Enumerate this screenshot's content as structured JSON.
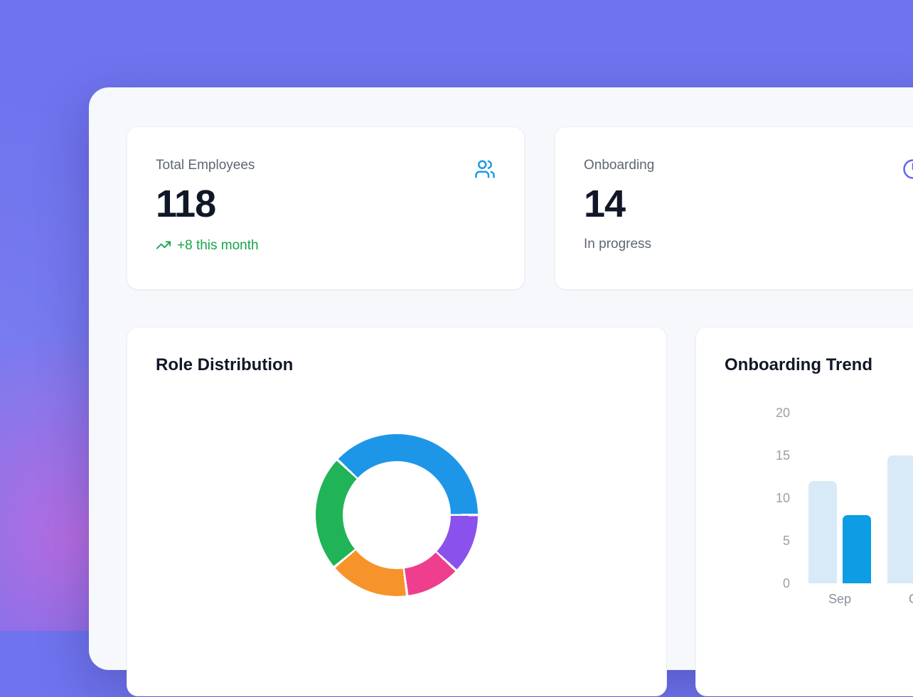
{
  "colors": {
    "background": "#6f73ee",
    "panel": "#f6f8fb",
    "card": "#ffffff",
    "accent_blue": "#1e96e8",
    "accent_indigo": "#6366f1",
    "positive_green": "#16a34a",
    "text_primary": "#101828",
    "text_secondary": "#5d6674",
    "axis_gray": "#9aa0ab"
  },
  "stat_cards": [
    {
      "label": "Total Employees",
      "value": "118",
      "change": "+8 this month",
      "icon": "users-icon",
      "icon_color": "#1e96e8",
      "change_color": "#16a34a"
    },
    {
      "label": "Onboarding",
      "value": "14",
      "subtitle": "In progress",
      "icon": "clock-icon",
      "icon_color": "#6366f1"
    }
  ],
  "charts": [
    {
      "title": "Role Distribution"
    },
    {
      "title": "Onboarding Trend"
    }
  ],
  "chart_data": [
    {
      "type": "donut",
      "title": "Role Distribution",
      "start_angle_deg": -47,
      "segments": [
        {
          "name": "segment-blue",
          "color": "#1e96e8",
          "percent": 38
        },
        {
          "name": "segment-violet",
          "color": "#8a51ec",
          "percent": 12
        },
        {
          "name": "segment-pink",
          "color": "#ee3e8d",
          "percent": 11
        },
        {
          "name": "segment-orange",
          "color": "#f7932b",
          "percent": 16
        },
        {
          "name": "segment-green",
          "color": "#20b358",
          "percent": 23
        }
      ]
    },
    {
      "type": "bar",
      "title": "Onboarding Trend",
      "categories": [
        "Sep",
        "Oct"
      ],
      "series": [
        {
          "name": "light-blue-bars",
          "color": "#d8eaf8",
          "values": [
            12,
            15
          ]
        },
        {
          "name": "dark-blue-bars",
          "color": "#0c9de4",
          "values": [
            8,
            null
          ]
        }
      ],
      "ylim": [
        0,
        20
      ],
      "yticks": [
        20,
        15,
        10,
        5,
        0
      ],
      "grid": false,
      "legend": false
    }
  ]
}
